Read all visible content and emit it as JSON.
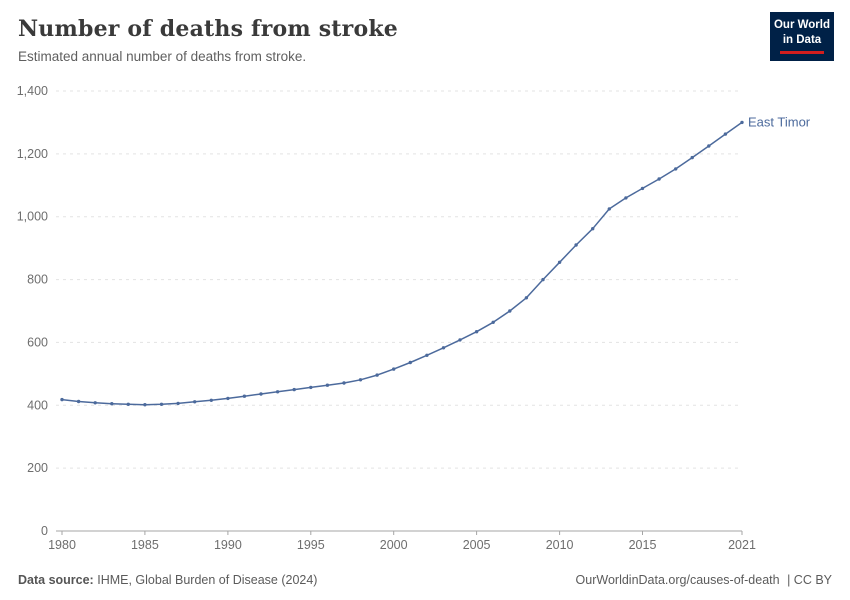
{
  "header": {
    "title": "Number of deaths from stroke",
    "subtitle": "Estimated annual number of deaths from stroke.",
    "logo": {
      "line1": "Our World",
      "line2": "in Data"
    }
  },
  "chart_data": {
    "type": "line",
    "title": "Number of deaths from stroke",
    "subtitle": "Estimated annual number of deaths from stroke.",
    "xlabel": "",
    "ylabel": "",
    "xlim": [
      1980,
      2021
    ],
    "ylim": [
      0,
      1400
    ],
    "grid": true,
    "legend_position": "end-of-line-label",
    "x_ticks": [
      1980,
      1985,
      1990,
      1995,
      2000,
      2005,
      2010,
      2015,
      2021
    ],
    "y_ticks": [
      0,
      200,
      400,
      600,
      800,
      1000,
      1200,
      1400
    ],
    "series": [
      {
        "name": "East Timor",
        "color": "#4c6a9c",
        "x": [
          1980,
          1981,
          1982,
          1983,
          1984,
          1985,
          1986,
          1987,
          1988,
          1989,
          1990,
          1991,
          1992,
          1993,
          1994,
          1995,
          1996,
          1997,
          1998,
          1999,
          2000,
          2001,
          2002,
          2003,
          2004,
          2005,
          2006,
          2007,
          2008,
          2009,
          2010,
          2011,
          2012,
          2013,
          2014,
          2015,
          2016,
          2017,
          2018,
          2019,
          2020,
          2021
        ],
        "values": [
          418,
          412,
          408,
          405,
          403,
          402,
          403,
          406,
          411,
          416,
          422,
          429,
          436,
          443,
          450,
          457,
          464,
          471,
          481,
          496,
          515,
          536,
          559,
          583,
          608,
          634,
          664,
          700,
          742,
          800,
          855,
          910,
          962,
          1025,
          1060,
          1090,
          1120,
          1152,
          1188,
          1225,
          1263,
          1300
        ]
      }
    ]
  },
  "footer": {
    "source_label": "Data source:",
    "source_text": "IHME, Global Burden of Disease (2024)",
    "url": "OurWorldinData.org/causes-of-death",
    "license": "| CC BY"
  }
}
